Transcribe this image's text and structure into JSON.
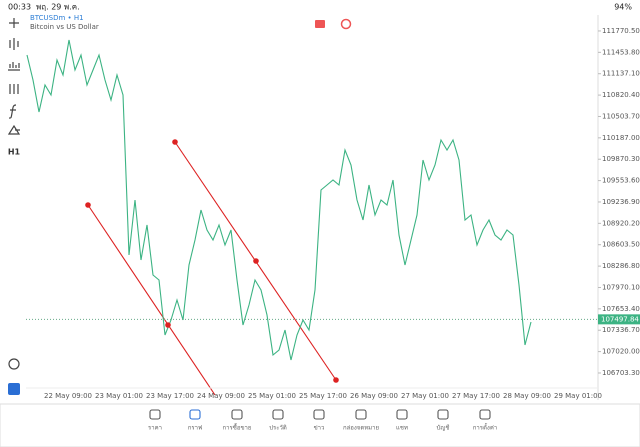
{
  "status_bar": {
    "time": "00:33",
    "date": "พฤ. 29 พ.ค.",
    "battery": "94%"
  },
  "chart_header": {
    "symbol": "BTCUSDm • H1",
    "description": "Bitcoin vs US Dollar"
  },
  "toolbar": {
    "timeframe": "H1"
  },
  "chart": {
    "type": "line",
    "color": "#3cb383",
    "categories": [
      "22 May 09:00",
      "23 May 01:00",
      "23 May 17:00",
      "24 May 09:00",
      "25 May 01:00",
      "25 May 17:00",
      "26 May 09:00",
      "27 May 01:00",
      "27 May 17:00",
      "28 May 09:00",
      "29 May 01:00"
    ],
    "values": [
      111414.9,
      111044.5,
      110570.4,
      110970.4,
      110822.3,
      111340.8,
      111118.6,
      111637.2,
      111192.7,
      111414.9,
      110970.4,
      111192.7,
      111414.9,
      111044.5,
      110748.2,
      111118.6,
      110822.3,
      108451.7,
      109266.6,
      108377.6,
      108896.2,
      108155.4,
      108081.3,
      107266.4,
      107488.7,
      107785.0,
      107488.7,
      108303.6,
      108674.0,
      109118.4,
      108822.1,
      108674.0,
      108896.2,
      108599.9,
      108822.1,
      108081.3,
      107414.6,
      107710.9,
      108081.3,
      107933.2,
      107562.8,
      106970.1,
      107044.2,
      107340.5,
      106896.0,
      107266.4,
      107488.7,
      107340.5,
      107933.2,
      109414.8,
      109488.8,
      109562.9,
      109488.8,
      110007.4,
      109785.2,
      109266.6,
      108970.3,
      109488.8,
      109044.4,
      109266.6,
      109192.5,
      109562.9,
      108748.0,
      108303.6,
      108674.0,
      109044.4,
      109859.2,
      109562.9,
      109785.2,
      110155.6,
      110007.4,
      110155.6,
      109859.2,
      108970.3,
      109044.4,
      108599.9,
      108822.1,
      108970.3,
      108748.0,
      108674.0,
      108822.1,
      108748.0,
      108007.2,
      107118.3,
      107459.0
    ],
    "ylim": [
      106303,
      112007
    ],
    "yticks": [
      {
        "value": 111770.5,
        "label": "111770.50"
      },
      {
        "value": 111453.8,
        "label": "111453.80"
      },
      {
        "value": 111137.1,
        "label": "111137.10"
      },
      {
        "value": 110820.4,
        "label": "110820.40"
      },
      {
        "value": 110503.7,
        "label": "110503.70"
      },
      {
        "value": 110187,
        "label": "110187.00"
      },
      {
        "value": 109870.3,
        "label": "109870.30"
      },
      {
        "value": 109553.6,
        "label": "109553.60"
      },
      {
        "value": 109236.9,
        "label": "109236.90"
      },
      {
        "value": 108920.2,
        "label": "108920.20"
      },
      {
        "value": 108603.5,
        "label": "108603.50"
      },
      {
        "value": 108286.8,
        "label": "108286.80"
      },
      {
        "value": 107970.1,
        "label": "107970.10"
      },
      {
        "value": 107653.4,
        "label": "107653.40"
      },
      {
        "value": 107336.7,
        "label": "107336.70"
      },
      {
        "value": 107020,
        "label": "107020.00"
      },
      {
        "value": 106703.3,
        "label": "106703.30"
      }
    ],
    "current_price": 107497.84
  },
  "bottom_nav": [
    "ราคา",
    "กราฟ",
    "การซื้อขาย",
    "ประวัติ",
    "ข่าว",
    "กล่องจดหมาย",
    "แชท",
    "บัญชี",
    "การตั้งค่า"
  ]
}
